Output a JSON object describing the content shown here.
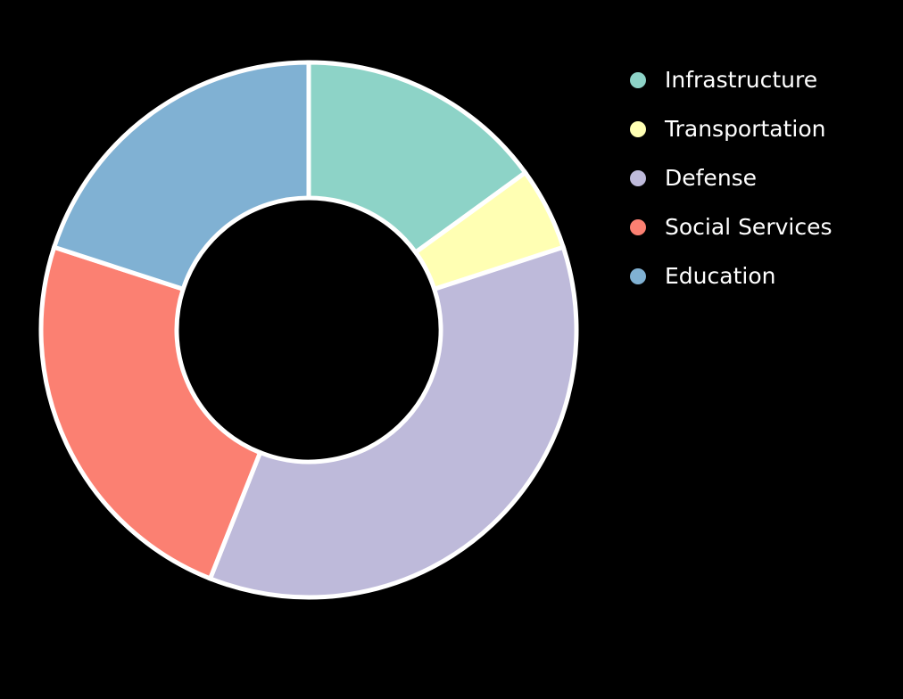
{
  "chart_data": {
    "type": "pie",
    "donut": true,
    "categories": [
      "Infrastructure",
      "Transportation",
      "Defense",
      "Social Services",
      "Education"
    ],
    "values": [
      15,
      5,
      36,
      24,
      20
    ],
    "colors": [
      "#8dd3c7",
      "#ffffb3",
      "#bebada",
      "#fb8072",
      "#80b1d3"
    ],
    "legend_position": "right",
    "background": "#000000",
    "slice_border_color": "#ffffff"
  }
}
